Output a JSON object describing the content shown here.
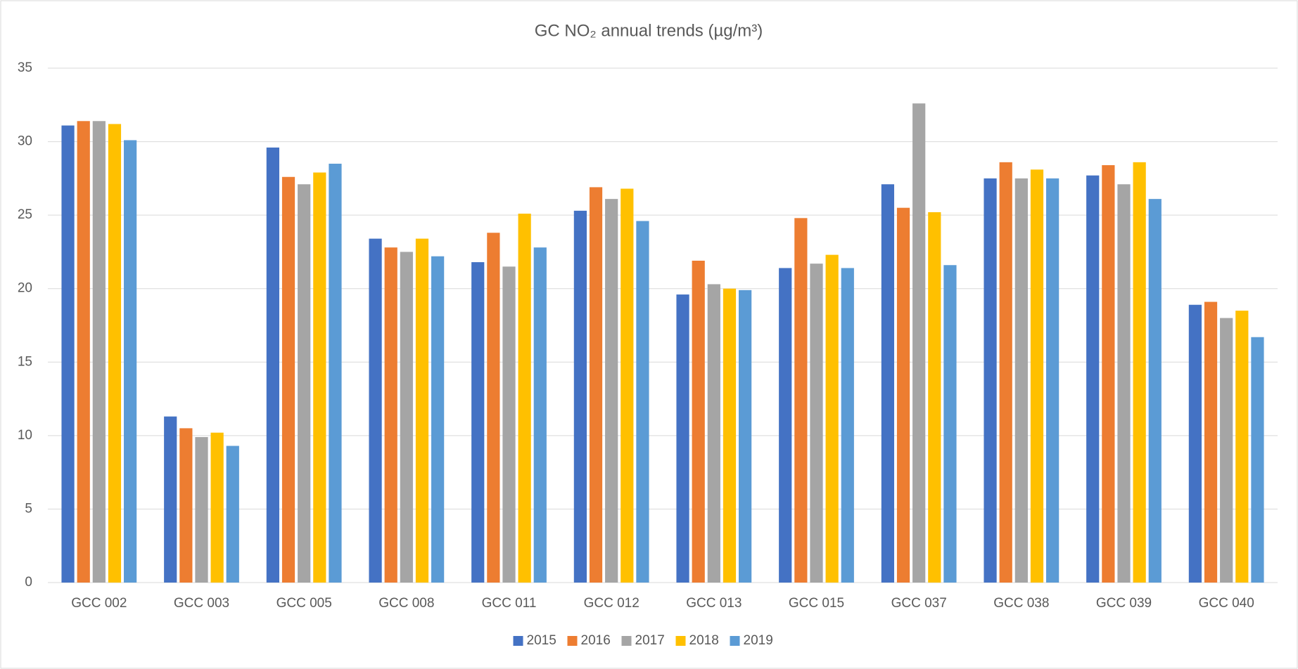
{
  "chart_data": {
    "type": "bar",
    "title": "GC NO₂ annual trends (µg/m³)",
    "categories": [
      "GCC 002",
      "GCC 003",
      "GCC 005",
      "GCC 008",
      "GCC 011",
      "GCC 012",
      "GCC 013",
      "GCC 015",
      "GCC 037",
      "GCC 038",
      "GCC 039",
      "GCC 040"
    ],
    "series": [
      {
        "name": "2015",
        "color": "#4472c4",
        "values": [
          31.1,
          11.3,
          29.6,
          23.4,
          21.8,
          25.3,
          19.6,
          21.4,
          27.1,
          27.5,
          27.7,
          18.9
        ]
      },
      {
        "name": "2016",
        "color": "#ed7d31",
        "values": [
          31.4,
          10.5,
          27.6,
          22.8,
          23.8,
          26.9,
          21.9,
          24.8,
          25.5,
          28.6,
          28.4,
          19.1
        ]
      },
      {
        "name": "2017",
        "color": "#a5a5a5",
        "values": [
          31.4,
          9.9,
          27.1,
          22.5,
          21.5,
          26.1,
          20.3,
          21.7,
          32.6,
          27.5,
          27.1,
          18.0
        ]
      },
      {
        "name": "2018",
        "color": "#ffc000",
        "values": [
          31.2,
          10.2,
          27.9,
          23.4,
          25.1,
          26.8,
          20.0,
          22.3,
          25.2,
          28.1,
          28.6,
          18.5
        ]
      },
      {
        "name": "2019",
        "color": "#5b9bd5",
        "values": [
          30.1,
          9.3,
          28.5,
          22.2,
          22.8,
          24.6,
          19.9,
          21.4,
          21.6,
          27.5,
          26.1,
          16.7
        ]
      }
    ],
    "ylim": [
      0,
      35
    ],
    "yticks": [
      0,
      5,
      10,
      15,
      20,
      25,
      30,
      35
    ],
    "grid": true,
    "legend": "bottom"
  }
}
